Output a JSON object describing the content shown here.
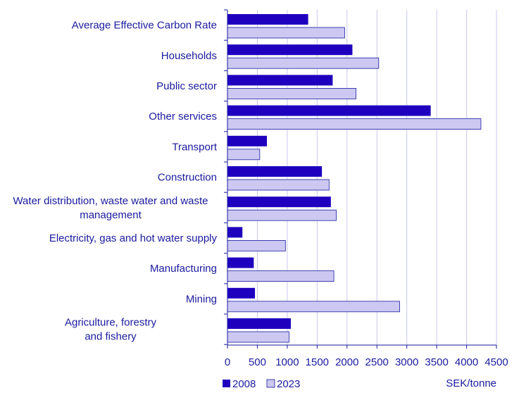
{
  "chart_data": {
    "type": "bar",
    "orientation": "horizontal",
    "categories": [
      [
        "Average Effective Carbon Rate"
      ],
      [
        "Households"
      ],
      [
        "Public sector"
      ],
      [
        "Other services"
      ],
      [
        "Transport"
      ],
      [
        "Construction"
      ],
      [
        "Water distribution, waste water and waste",
        "management"
      ],
      [
        "Electricity, gas and hot water supply"
      ],
      [
        "Manufacturing"
      ],
      [
        "Mining"
      ],
      [
        "Agriculture, forestry",
        "and fishery"
      ]
    ],
    "series": [
      {
        "name": "2008",
        "color": "#1e00be",
        "values": [
          1350,
          2090,
          1760,
          3400,
          660,
          1580,
          1730,
          250,
          440,
          460,
          1060
        ]
      },
      {
        "name": "2023",
        "color": "#cdc8f2",
        "values": [
          1960,
          2530,
          2150,
          4240,
          540,
          1700,
          1820,
          970,
          1780,
          2880,
          1030
        ]
      }
    ],
    "xlim": [
      0,
      4500
    ],
    "xticks": [
      0,
      500,
      1000,
      1500,
      2000,
      2500,
      3000,
      3500,
      4000,
      4500
    ],
    "xlabel": "SEK/tonne",
    "title": "",
    "legend_position": "bottom-left",
    "grid": true,
    "colors": {
      "text": "#1a1a9e",
      "grid": "#c8c8ec",
      "axis": "#1a1a9e",
      "bar_outline": "#1a1a9e"
    }
  }
}
